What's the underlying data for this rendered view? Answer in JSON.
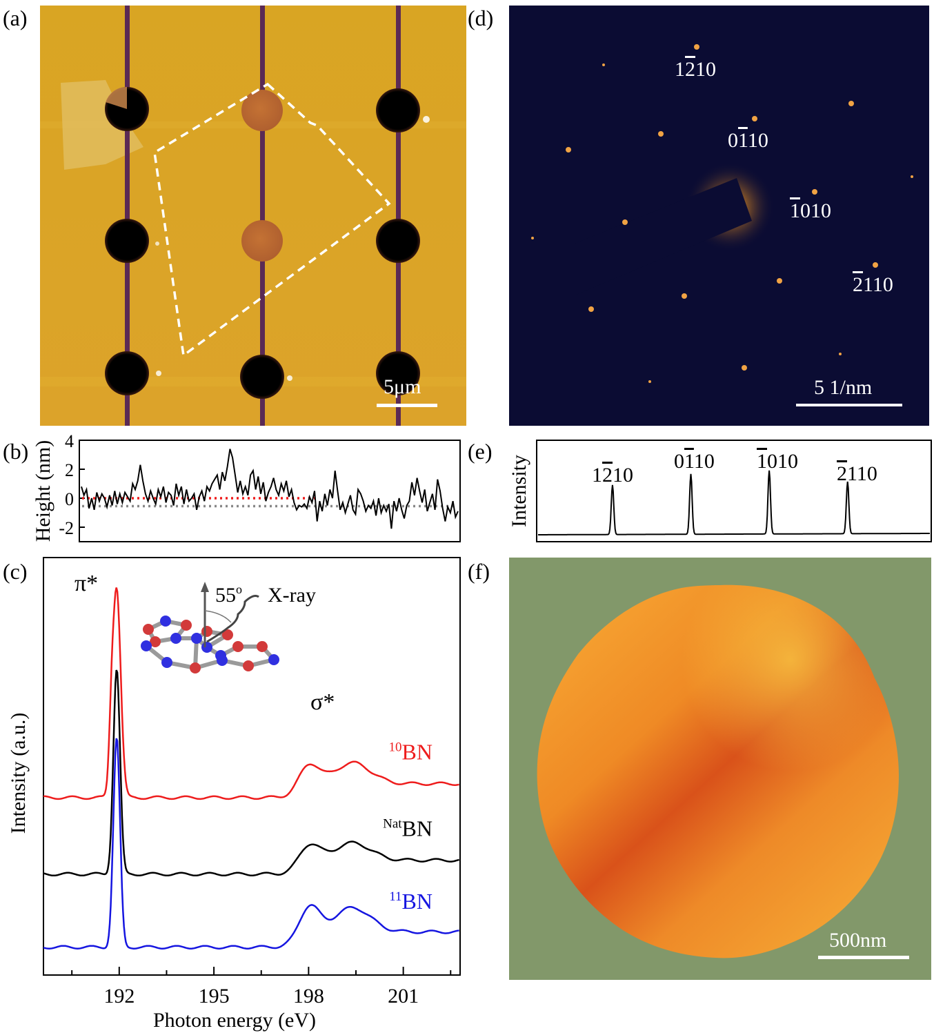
{
  "panels": {
    "a": {
      "label": "(a)",
      "scale_bar": "5μm"
    },
    "b": {
      "label": "(b)"
    },
    "c": {
      "label": "(c)"
    },
    "d": {
      "label": "(d)",
      "scale_bar": "5 1/nm",
      "spots": [
        {
          "pre": "1",
          "bar": "2",
          "post": "10"
        },
        {
          "pre": "0",
          "bar": "1",
          "post": "10"
        },
        {
          "pre": "",
          "bar": "1",
          "post": "010"
        },
        {
          "pre": "",
          "bar": "2",
          "post": "110"
        }
      ]
    },
    "e": {
      "label": "(e)"
    },
    "f": {
      "label": "(f)",
      "scale_bar": "500nm"
    }
  },
  "colors": {
    "afm_bg": "#d9a224",
    "diffraction_bg": "#0b0c33",
    "spot": "#f1a344",
    "green_bg": "#82986a",
    "disk_orange": "#f39a2a",
    "red": "#ee1c1c",
    "blue": "#1515e0",
    "black": "#000000",
    "gray": "#888888"
  },
  "chart_data": [
    {
      "type": "line",
      "id": "b",
      "ylabel": "Height (nm)",
      "yticks": [
        "4",
        "2",
        "0",
        "-2"
      ],
      "ylim": [
        -3,
        4
      ],
      "series": [
        {
          "values": [
            0.8,
            0.2,
            0.6,
            -0.7,
            0.0,
            -0.8,
            0.4,
            -0.2,
            0.3,
            0.0,
            -0.6,
            0.2,
            -0.5,
            0.5,
            -0.4,
            0.3,
            -0.3,
            0.4,
            0.1,
            -0.2,
            1.0,
            0.6,
            1.2,
            2.3,
            1.2,
            0.3,
            -0.2,
            0.5,
            0.0,
            -0.4,
            0.6,
            0.1,
            0.8,
            -0.3,
            0.4,
            0.2,
            -0.5,
            1.0,
            0.2,
            0.8,
            -0.4,
            0.6,
            -0.2,
            0.0,
            0.3,
            -0.8,
            0.1,
            0.5,
            -0.2,
            0.8,
            0.5,
            1.0,
            1.3,
            1.6,
            0.6,
            1.8,
            1.2,
            2.2,
            3.4,
            2.8,
            1.6,
            0.4,
            1.2,
            0.3,
            0.8,
            0.2,
            1.6,
            1.9,
            0.6,
            1.5,
            0.3,
            1.1,
            -0.2,
            0.4,
            0.8,
            1.4,
            0.6,
            0.2,
            1.0,
            0.5,
            1.2,
            0.1,
            0.6,
            -0.3,
            -0.8,
            -0.5,
            -0.6,
            -0.4,
            -0.7,
            0.1,
            -0.3,
            0.5,
            -1.6,
            -0.2,
            -0.9,
            0.3,
            -0.5,
            0.6,
            0.0,
            1.9,
            0.5,
            -0.8,
            -0.3,
            -1.0,
            -0.4,
            0.2,
            -0.8,
            -1.1,
            0.6,
            0.3,
            -0.2,
            -0.9,
            -0.5,
            -0.7,
            -0.2,
            -1.2,
            0.0,
            -1.0,
            -0.5,
            -0.9,
            -0.4,
            -2.1,
            -0.2,
            -0.9,
            0.0,
            -0.8,
            -1.4,
            -0.5,
            -0.2,
            1.1,
            0.2,
            1.4,
            0.5,
            -0.3,
            0.6,
            -0.9,
            -0.3,
            0.3,
            -0.8,
            1.3,
            0.5,
            -0.7,
            -1.6,
            -0.6,
            -1.0,
            -0.2,
            -1.3,
            -0.9
          ]
        }
      ],
      "reference_levels": [
        {
          "y": 0.0,
          "color": "red",
          "range": [
            0,
            0.62
          ]
        },
        {
          "y": -0.55,
          "color": "gray",
          "range": [
            0,
            1
          ]
        }
      ]
    },
    {
      "type": "line",
      "id": "c",
      "xlabel": "Photon energy (eV)",
      "ylabel": "Intensity (a.u.)",
      "xlim": [
        189.6,
        202.8
      ],
      "xticks": [
        192,
        195,
        198,
        201
      ],
      "series": [
        {
          "name": "10BN",
          "sup": "10",
          "base": "BN",
          "color": "red",
          "offset": 2.15,
          "peaks": [
            {
              "x": 191.92,
              "h": 3.0,
              "w": 0.18
            },
            {
              "x": 191.75,
              "h": 0.6,
              "w": 0.1
            },
            {
              "x": 198.0,
              "h": 0.35,
              "w": 0.45
            },
            {
              "x": 199.4,
              "h": 0.3,
              "w": 0.8
            }
          ],
          "edge": {
            "x": 197.9,
            "h": 0.2
          }
        },
        {
          "name": "NatBN",
          "sup": "Nat",
          "base": "BN",
          "color": "black",
          "offset": 1.05,
          "peaks": [
            {
              "x": 191.92,
              "h": 2.95,
              "w": 0.15
            },
            {
              "x": 198.0,
              "h": 0.3,
              "w": 0.45
            },
            {
              "x": 199.4,
              "h": 0.25,
              "w": 0.8
            }
          ],
          "edge": {
            "x": 197.9,
            "h": 0.2
          }
        },
        {
          "name": "11BN",
          "sup": "11",
          "base": "BN",
          "color": "blue",
          "offset": 0.0,
          "peaks": [
            {
              "x": 191.92,
              "h": 3.0,
              "w": 0.15
            },
            {
              "x": 198.0,
              "h": 0.45,
              "w": 0.45
            },
            {
              "x": 199.4,
              "h": 0.35,
              "w": 0.8
            }
          ],
          "edge": {
            "x": 197.9,
            "h": 0.22
          }
        }
      ],
      "annotations": {
        "pi": "π*",
        "sigma": "σ*",
        "angle_value": "55",
        "angle_unit": "o",
        "xray": "X-ray"
      }
    },
    {
      "type": "line",
      "id": "e",
      "ylabel": "Intensity",
      "peaks": [
        {
          "position": 0.19,
          "height": 0.78
        },
        {
          "position": 0.39,
          "height": 0.95
        },
        {
          "position": 0.59,
          "height": 1.0
        },
        {
          "position": 0.79,
          "height": 0.82
        }
      ]
    }
  ]
}
